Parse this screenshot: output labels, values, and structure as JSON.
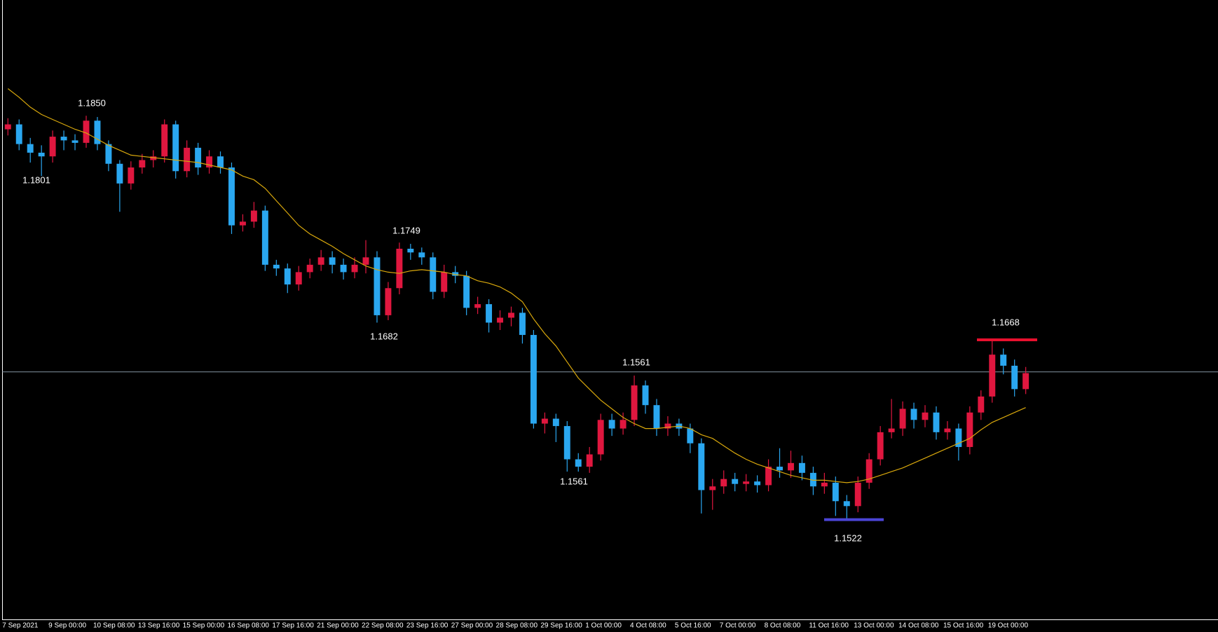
{
  "chart_data": {
    "type": "candlestick",
    "categories": [
      "7 Sep 2021",
      null,
      null,
      null,
      "9 Sep 00:00",
      null,
      null,
      null,
      "10 Sep 08:00",
      null,
      null,
      null,
      "13 Sep 16:00",
      null,
      null,
      null,
      "15 Sep 00:00",
      null,
      null,
      null,
      "16 Sep 08:00",
      null,
      null,
      null,
      "17 Sep 16:00",
      null,
      null,
      null,
      "21 Sep 00:00",
      null,
      null,
      null,
      "22 Sep 08:00",
      null,
      null,
      null,
      "23 Sep 16:00",
      null,
      null,
      null,
      "27 Sep 00:00",
      null,
      null,
      null,
      "28 Sep 08:00",
      null,
      null,
      null,
      "29 Sep 16:00",
      null,
      null,
      null,
      "1 Oct 00:00",
      null,
      null,
      null,
      "4 Oct 08:00",
      null,
      null,
      null,
      "5 Oct 16:00",
      null,
      null,
      null,
      "7 Oct 00:00",
      null,
      null,
      null,
      "8 Oct 08:00",
      null,
      null,
      null,
      "11 Oct 16:00",
      null,
      null,
      null,
      "13 Oct 00:00",
      null,
      null,
      null,
      "14 Oct 08:00",
      null,
      null,
      null,
      "15 Oct 16:00",
      null,
      null,
      null,
      "19 Oct 00:00",
      null,
      null,
      null
    ],
    "open": [
      1.1839,
      1.1843,
      1.1827,
      1.182,
      1.1817,
      1.1833,
      1.183,
      1.1828,
      1.1846,
      1.1827,
      1.1811,
      1.1795,
      1.1808,
      1.1814,
      1.1817,
      1.1843,
      1.1805,
      1.1824,
      1.1808,
      1.1817,
      1.1808,
      1.1761,
      1.1764,
      1.1773,
      1.1729,
      1.1726,
      1.1713,
      1.1723,
      1.1729,
      1.1735,
      1.1729,
      1.1723,
      1.1729,
      1.1735,
      1.1688,
      1.171,
      1.1742,
      1.1739,
      1.1735,
      1.1707,
      1.1723,
      1.172,
      1.1694,
      1.1697,
      1.1682,
      1.1686,
      1.169,
      1.1672,
      1.16,
      1.1604,
      1.1598,
      1.1571,
      1.1565,
      1.1575,
      1.1603,
      1.1596,
      1.1603,
      1.1631,
      1.1615,
      1.1596,
      1.16,
      1.1596,
      1.1584,
      1.1546,
      1.1549,
      1.1555,
      1.1551,
      1.1553,
      1.155,
      1.1565,
      1.1562,
      1.1568,
      1.156,
      1.1549,
      1.1552,
      1.1537,
      1.1533,
      1.1552,
      1.1571,
      1.1593,
      1.1596,
      1.1612,
      1.1603,
      1.1609,
      1.1593,
      1.1596,
      1.1581,
      1.1609,
      1.1622,
      1.1656,
      1.1647,
      1.1628
    ],
    "high": [
      1.1848,
      1.1847,
      1.1832,
      1.1826,
      1.1838,
      1.1838,
      1.1835,
      1.185,
      1.1849,
      1.183,
      1.1814,
      1.1813,
      1.1819,
      1.1822,
      1.1847,
      1.1846,
      1.183,
      1.1828,
      1.1822,
      1.1821,
      1.1812,
      1.177,
      1.178,
      1.1777,
      1.1733,
      1.173,
      1.1728,
      1.1734,
      1.1741,
      1.174,
      1.1734,
      1.1735,
      1.1749,
      1.174,
      1.1715,
      1.1747,
      1.1746,
      1.1743,
      1.1739,
      1.1729,
      1.1728,
      1.1724,
      1.1703,
      1.1701,
      1.1692,
      1.1695,
      1.1694,
      1.1676,
      1.1609,
      1.1608,
      1.1602,
      1.1576,
      1.1581,
      1.1608,
      1.1608,
      1.1609,
      1.1639,
      1.1635,
      1.162,
      1.1606,
      1.1604,
      1.16,
      1.1588,
      1.1555,
      1.1562,
      1.156,
      1.1559,
      1.1558,
      1.1571,
      1.158,
      1.1578,
      1.1574,
      1.1565,
      1.156,
      1.1557,
      1.1542,
      1.1557,
      1.1576,
      1.1598,
      1.162,
      1.1618,
      1.1617,
      1.1615,
      1.1614,
      1.1602,
      1.16,
      1.1614,
      1.1627,
      1.1668,
      1.1661,
      1.1652,
      1.1646
    ],
    "low": [
      1.1834,
      1.1822,
      1.1812,
      1.1801,
      1.1812,
      1.1822,
      1.1822,
      1.1824,
      1.1822,
      1.1805,
      1.1772,
      1.179,
      1.1803,
      1.1808,
      1.1812,
      1.1799,
      1.18,
      1.1802,
      1.1803,
      1.1803,
      1.1754,
      1.1756,
      1.1759,
      1.1724,
      1.172,
      1.1706,
      1.1708,
      1.1718,
      1.1724,
      1.1722,
      1.1717,
      1.1718,
      1.1722,
      1.1682,
      1.1684,
      1.1705,
      1.1733,
      1.1729,
      1.1701,
      1.1702,
      1.1714,
      1.1688,
      1.1689,
      1.1674,
      1.1676,
      1.1679,
      1.1665,
      1.1596,
      1.1592,
      1.1585,
      1.1561,
      1.1561,
      1.156,
      1.157,
      1.159,
      1.1591,
      1.1598,
      1.1608,
      1.159,
      1.159,
      1.159,
      1.1576,
      1.1527,
      1.153,
      1.1543,
      1.1545,
      1.1545,
      1.1544,
      1.1545,
      1.1556,
      1.1556,
      1.1554,
      1.1542,
      1.1543,
      1.1525,
      1.1522,
      1.1528,
      1.1547,
      1.1566,
      1.1588,
      1.159,
      1.1596,
      1.1597,
      1.1587,
      1.1587,
      1.157,
      1.1575,
      1.1603,
      1.1617,
      1.164,
      1.1622,
      1.1624
    ],
    "close": [
      1.1843,
      1.1827,
      1.182,
      1.1817,
      1.1833,
      1.183,
      1.1828,
      1.1846,
      1.1827,
      1.1811,
      1.1795,
      1.1808,
      1.1814,
      1.1817,
      1.1843,
      1.1805,
      1.1824,
      1.1808,
      1.1817,
      1.1808,
      1.1761,
      1.1764,
      1.1773,
      1.1729,
      1.1726,
      1.1713,
      1.1723,
      1.1729,
      1.1735,
      1.1729,
      1.1723,
      1.1729,
      1.1735,
      1.1688,
      1.171,
      1.1742,
      1.1739,
      1.1735,
      1.1707,
      1.1723,
      1.172,
      1.1694,
      1.1697,
      1.1682,
      1.1686,
      1.169,
      1.1672,
      1.16,
      1.1604,
      1.1598,
      1.1571,
      1.1565,
      1.1575,
      1.1603,
      1.1596,
      1.1603,
      1.1631,
      1.1615,
      1.1596,
      1.16,
      1.1596,
      1.1584,
      1.1546,
      1.1549,
      1.1555,
      1.1551,
      1.1553,
      1.155,
      1.1565,
      1.1562,
      1.1568,
      1.156,
      1.1549,
      1.1552,
      1.1537,
      1.1533,
      1.1552,
      1.1571,
      1.1593,
      1.1596,
      1.1612,
      1.1603,
      1.1609,
      1.1593,
      1.1596,
      1.1581,
      1.1609,
      1.1622,
      1.1656,
      1.1647,
      1.1628,
      1.1641
    ],
    "up_color": "#e0173f",
    "down_color": "#2aa7f0",
    "ma": {
      "color": "#d9a80c",
      "values": [
        1.1872,
        1.1865,
        1.1857,
        1.1851,
        1.1847,
        1.1843,
        1.1839,
        1.1836,
        1.1831,
        1.1826,
        1.1822,
        1.1818,
        1.1817,
        1.1816,
        1.1815,
        1.1814,
        1.1813,
        1.1812,
        1.181,
        1.1808,
        1.1806,
        1.1801,
        1.1798,
        1.1791,
        1.1781,
        1.1771,
        1.1761,
        1.1754,
        1.1749,
        1.1744,
        1.1738,
        1.1733,
        1.1728,
        1.1725,
        1.1723,
        1.1722,
        1.1724,
        1.1725,
        1.1724,
        1.1723,
        1.1721,
        1.172,
        1.1716,
        1.1714,
        1.1711,
        1.1706,
        1.1699,
        1.1685,
        1.1673,
        1.1663,
        1.165,
        1.1637,
        1.1628,
        1.1619,
        1.1612,
        1.1605,
        1.16,
        1.1596,
        1.1596,
        1.1597,
        1.1598,
        1.1596,
        1.1591,
        1.1588,
        1.1582,
        1.1576,
        1.1571,
        1.1567,
        1.1564,
        1.1561,
        1.1558,
        1.1556,
        1.1554,
        1.1554,
        1.1553,
        1.1552,
        1.1553,
        1.1555,
        1.1558,
        1.1561,
        1.1564,
        1.1568,
        1.1572,
        1.1576,
        1.158,
        1.1584,
        1.1588,
        1.1595,
        1.1601,
        1.1605,
        1.1609,
        1.1613
      ]
    },
    "ylim": [
      1.1441,
      1.1944
    ],
    "price_line": {
      "value": 1.1642,
      "color": "#8494a2"
    },
    "levels": [
      {
        "value": 1.1668,
        "color": "#e8102e"
      },
      {
        "value": 1.1522,
        "color": "#4b45d6"
      }
    ],
    "annotations": [
      "1.1850",
      "1.1801",
      "1.1749",
      "1.1682",
      "1.1561",
      "1.1561",
      "1.1668",
      "1.1522"
    ]
  }
}
